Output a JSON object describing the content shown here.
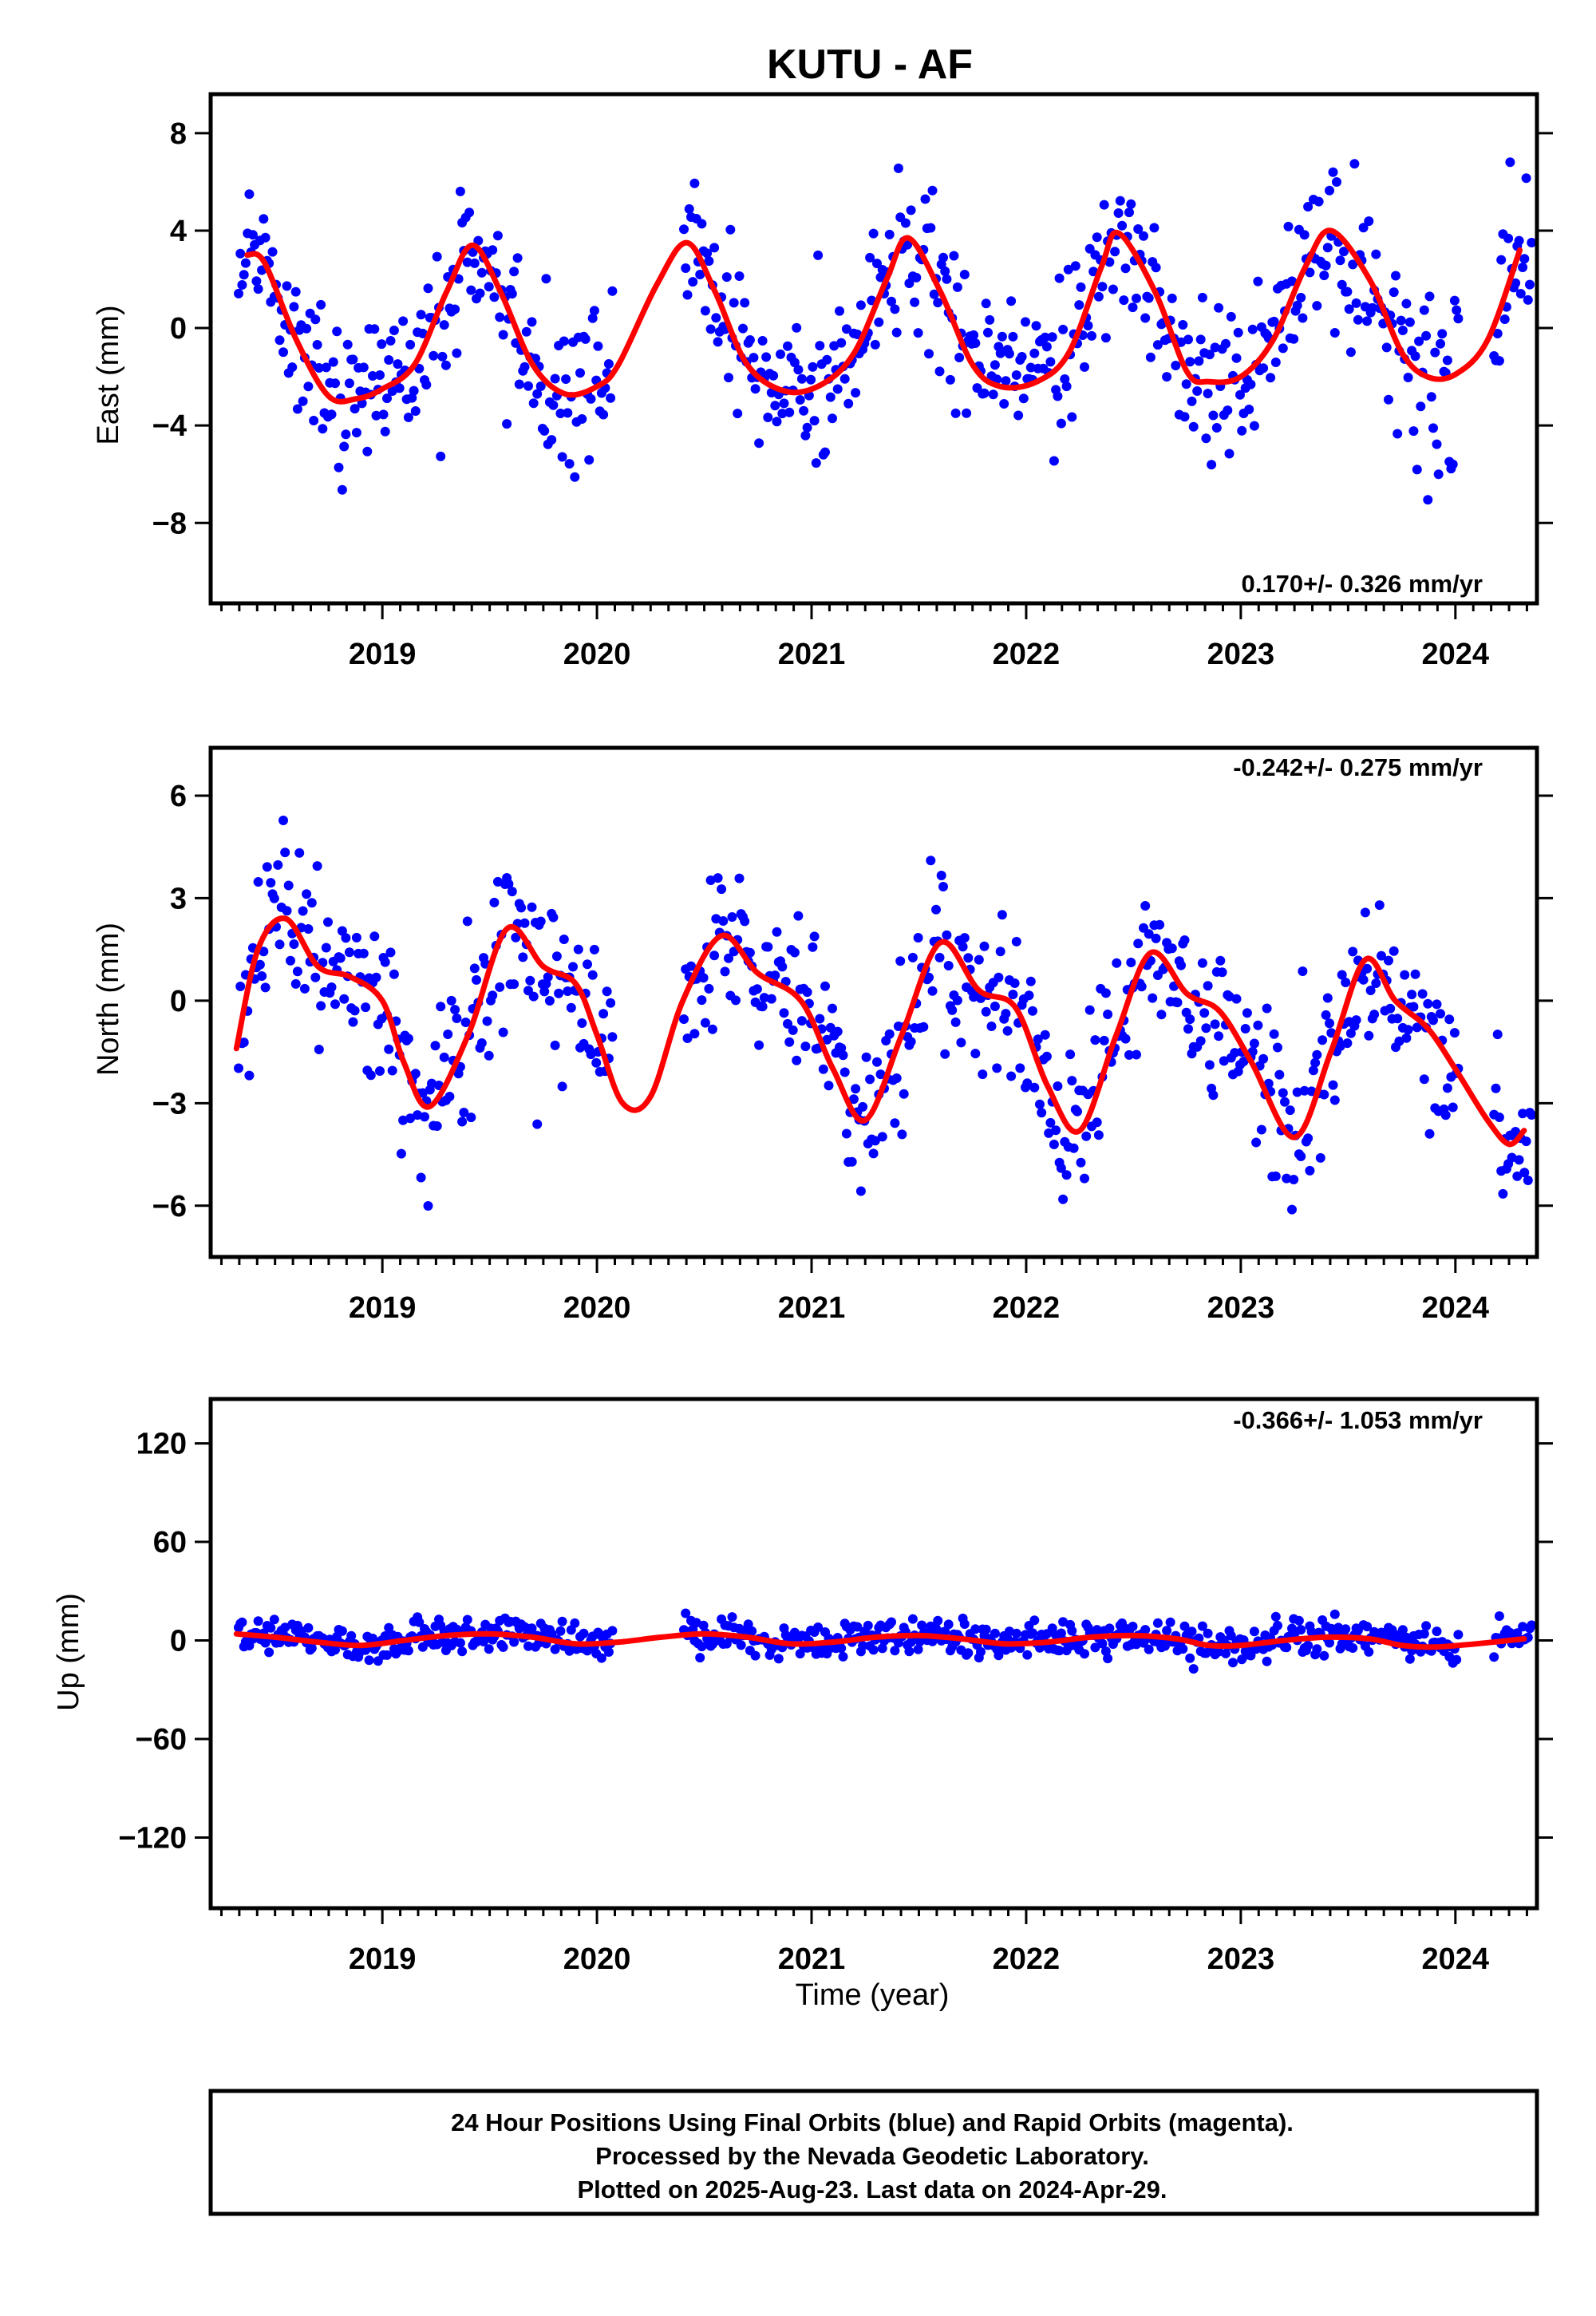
{
  "title": "KUTU - AF",
  "footer": {
    "line1": "24 Hour Positions Using Final Orbits (blue) and Rapid Orbits (magenta).",
    "line2": "Processed by the Nevada Geodetic Laboratory.",
    "line3": "Plotted on 2025-Aug-23. Last data on 2024-Apr-29."
  },
  "colors": {
    "final_orbits": "#0000ff",
    "model": "#ff0000",
    "frame": "#000000"
  },
  "chart_data": [
    {
      "type": "scatter",
      "ylabel": "East (mm)",
      "xlabel": "",
      "xlim": [
        2018.2,
        2024.38
      ],
      "ylim": [
        -11.3,
        9.6
      ],
      "xticks": [
        2019,
        2020,
        2021,
        2022,
        2023,
        2024
      ],
      "xtick_labels": [
        "2019",
        "2020",
        "2021",
        "2022",
        "2023",
        "2024"
      ],
      "yticks": [
        -8,
        -4,
        0,
        4,
        8
      ],
      "ytick_labels": [
        "−8",
        "−4",
        "0",
        "4",
        "8"
      ],
      "rate_label": "0.170+/- 0.326 mm/yr",
      "grid": false,
      "series": [
        {
          "values_x": [
            2018.37,
            2018.45,
            2018.6,
            2018.75,
            2018.88,
            2019.0,
            2019.15,
            2019.3,
            2019.42,
            2019.55,
            2019.7,
            2019.85,
            2020.0,
            2020.1,
            2020.28,
            2020.42,
            2020.55,
            2020.7,
            2020.88,
            2021.05,
            2021.2,
            2021.35,
            2021.45,
            2021.6,
            2021.75,
            2021.88,
            2022.05,
            2022.2,
            2022.35,
            2022.43,
            2022.6,
            2022.75,
            2022.85,
            2023.0,
            2023.15,
            2023.3,
            2023.42,
            2023.6,
            2023.75,
            2023.87,
            2024.0,
            2024.15,
            2024.3
          ],
          "values_y": [
            3.0,
            2.7,
            -0.5,
            -2.8,
            -2.9,
            -2.5,
            -1.5,
            1.5,
            3.4,
            1.5,
            -1.5,
            -2.7,
            -2.4,
            -1.5,
            1.8,
            3.5,
            1.5,
            -1.5,
            -2.6,
            -2.3,
            -1.0,
            2.0,
            3.7,
            1.5,
            -1.5,
            -2.4,
            -2.2,
            -1.0,
            2.5,
            3.9,
            1.5,
            -1.8,
            -2.2,
            -2.0,
            -0.5,
            2.5,
            4.0,
            2.0,
            -1.0,
            -2.0,
            -1.9,
            -0.5,
            3.2
          ]
        }
      ]
    },
    {
      "type": "scatter",
      "ylabel": "North (mm)",
      "xlabel": "",
      "xlim": [
        2018.2,
        2024.38
      ],
      "ylim": [
        -7.5,
        7.4
      ],
      "xticks": [
        2019,
        2020,
        2021,
        2022,
        2023,
        2024
      ],
      "xtick_labels": [
        "2019",
        "2020",
        "2021",
        "2022",
        "2023",
        "2024"
      ],
      "yticks": [
        -6,
        -3,
        0,
        3,
        6
      ],
      "ytick_labels": [
        "−6",
        "−3",
        "0",
        "3",
        "6"
      ],
      "rate_label": "-0.242+/- 0.275 mm/yr",
      "grid": false,
      "series": [
        {
          "values_x": [
            2018.32,
            2018.42,
            2018.55,
            2018.7,
            2018.85,
            2019.0,
            2019.1,
            2019.22,
            2019.4,
            2019.58,
            2019.75,
            2019.9,
            2020.0,
            2020.12,
            2020.25,
            2020.4,
            2020.58,
            2020.75,
            2020.95,
            2021.1,
            2021.25,
            2021.42,
            2021.6,
            2021.78,
            2021.95,
            2022.1,
            2022.25,
            2022.42,
            2022.58,
            2022.75,
            2022.9,
            2023.05,
            2023.25,
            2023.42,
            2023.58,
            2023.72,
            2023.87,
            2024.0,
            2024.15,
            2024.25,
            2024.32
          ],
          "values_y": [
            -1.4,
            1.5,
            2.4,
            1.0,
            0.7,
            0.0,
            -1.8,
            -3.1,
            -1.0,
            2.1,
            1.0,
            0.5,
            -1.0,
            -3.0,
            -2.8,
            0.0,
            1.9,
            0.8,
            0.0,
            -2.0,
            -3.5,
            -1.0,
            1.7,
            0.3,
            -0.2,
            -2.5,
            -3.8,
            -1.0,
            1.4,
            0.2,
            -0.3,
            -1.8,
            -4.0,
            -1.5,
            1.2,
            0.0,
            -0.8,
            -2.0,
            -3.5,
            -4.2,
            -3.8
          ]
        }
      ]
    },
    {
      "type": "scatter",
      "ylabel": "Up (mm)",
      "xlabel": "Time (year)",
      "xlim": [
        2018.2,
        2024.38
      ],
      "ylim": [
        -163,
        147
      ],
      "xticks": [
        2019,
        2020,
        2021,
        2022,
        2023,
        2024
      ],
      "xtick_labels": [
        "2019",
        "2020",
        "2021",
        "2022",
        "2023",
        "2024"
      ],
      "yticks": [
        -120,
        -60,
        0,
        60,
        120
      ],
      "ytick_labels": [
        "−120",
        "−60",
        "0",
        "60",
        "120"
      ],
      "rate_label": "-0.366+/- 1.053 mm/yr",
      "grid": false,
      "series": [
        {
          "values_x": [
            2018.32,
            2018.5,
            2018.7,
            2018.9,
            2019.1,
            2019.3,
            2019.5,
            2019.7,
            2019.9,
            2020.1,
            2020.3,
            2020.5,
            2020.7,
            2020.9,
            2021.1,
            2021.3,
            2021.5,
            2021.7,
            2021.9,
            2022.1,
            2022.3,
            2022.5,
            2022.7,
            2022.85,
            2023.0,
            2023.2,
            2023.4,
            2023.6,
            2023.75,
            2023.9,
            2024.1,
            2024.32
          ],
          "values_y": [
            4,
            2,
            -1,
            -3,
            0,
            3,
            4,
            2,
            -2,
            -1,
            2,
            4,
            2,
            -2,
            -1,
            2,
            3,
            1,
            -2,
            -1,
            2,
            3,
            1,
            -3,
            -3,
            0,
            2,
            1,
            -3,
            -4,
            -2,
            1
          ]
        }
      ]
    }
  ]
}
